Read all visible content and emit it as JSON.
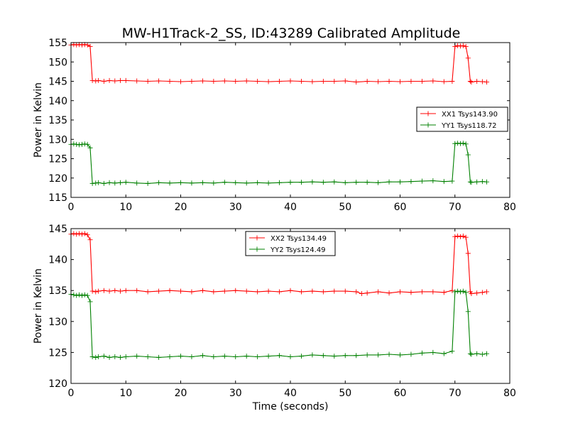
{
  "title": "MW-H1Track-2_SS, ID:43289 Calibrated Amplitude",
  "chart_data": [
    {
      "type": "line",
      "ylabel": "Power in Kelvin",
      "xlabel": "",
      "xlim": [
        0,
        80
      ],
      "ylim": [
        115,
        155
      ],
      "xticks": [
        "0",
        "10",
        "20",
        "30",
        "40",
        "50",
        "60",
        "70",
        "80"
      ],
      "yticks": [
        "115",
        "120",
        "125",
        "130",
        "135",
        "140",
        "145",
        "150",
        "155"
      ],
      "legend_position": "center-right",
      "series": [
        {
          "name": "XX1 Tsys143.90",
          "color": "#ff0000",
          "x": [
            0,
            0.5,
            1,
            1.5,
            2,
            2.5,
            3,
            3.5,
            3.9,
            4.5,
            5,
            6,
            7,
            8,
            9,
            10,
            12,
            14,
            16,
            18,
            20,
            22,
            24,
            26,
            28,
            30,
            32,
            34,
            36,
            38,
            40,
            42,
            44,
            46,
            48,
            50,
            52,
            54,
            56,
            58,
            60,
            62,
            64,
            66,
            68,
            69.5,
            70,
            70.5,
            71,
            71.5,
            72,
            72.4,
            72.8,
            73,
            74,
            75,
            75.8
          ],
          "y": [
            154.4,
            154.5,
            154.4,
            154.5,
            154.4,
            154.5,
            154.4,
            154.0,
            145.2,
            145.1,
            145.2,
            145.0,
            145.2,
            145.1,
            145.2,
            145.2,
            145.1,
            145.0,
            145.1,
            145.0,
            144.9,
            145.0,
            145.1,
            145.0,
            145.1,
            145.0,
            145.1,
            145.0,
            144.9,
            145.0,
            145.1,
            145.0,
            144.9,
            145.0,
            145.0,
            145.1,
            144.8,
            145.0,
            144.9,
            145.0,
            144.9,
            145.0,
            145.0,
            145.1,
            144.9,
            145.0,
            154.0,
            154.2,
            154.1,
            154.2,
            154.0,
            151.0,
            145.0,
            144.8,
            145.0,
            144.9,
            144.8
          ]
        },
        {
          "name": "YY1 Tsys118.72",
          "color": "#008000",
          "x": [
            0,
            0.5,
            1,
            1.5,
            2,
            2.5,
            3,
            3.5,
            3.9,
            4.5,
            5,
            6,
            7,
            8,
            9,
            10,
            12,
            14,
            16,
            18,
            20,
            22,
            24,
            26,
            28,
            30,
            32,
            34,
            36,
            38,
            40,
            42,
            44,
            46,
            48,
            50,
            52,
            54,
            56,
            58,
            60,
            62,
            64,
            66,
            68,
            69.5,
            70,
            70.5,
            71,
            71.5,
            72,
            72.4,
            72.8,
            73,
            74,
            75,
            75.8
          ],
          "y": [
            128.7,
            128.8,
            128.7,
            128.6,
            128.7,
            128.8,
            128.7,
            127.8,
            118.6,
            118.7,
            118.8,
            118.6,
            118.8,
            118.7,
            118.8,
            118.9,
            118.7,
            118.6,
            118.8,
            118.7,
            118.8,
            118.7,
            118.8,
            118.7,
            118.9,
            118.8,
            118.7,
            118.8,
            118.7,
            118.8,
            118.9,
            118.9,
            119.0,
            118.9,
            119.0,
            118.8,
            118.9,
            118.9,
            118.8,
            119.0,
            119.0,
            119.1,
            119.2,
            119.3,
            119.1,
            119.2,
            128.9,
            129.0,
            128.9,
            129.0,
            128.8,
            126.0,
            119.0,
            118.9,
            119.0,
            119.1,
            119.0
          ]
        }
      ]
    },
    {
      "type": "line",
      "ylabel": "Power in Kelvin",
      "xlabel": "Time (seconds)",
      "xlim": [
        0,
        80
      ],
      "ylim": [
        120,
        145
      ],
      "xticks": [
        "0",
        "10",
        "20",
        "30",
        "40",
        "50",
        "60",
        "70",
        "80"
      ],
      "yticks": [
        "120",
        "125",
        "130",
        "135",
        "140",
        "145"
      ],
      "legend_position": "top-center",
      "series": [
        {
          "name": "XX2 Tsys134.49",
          "color": "#ff0000",
          "x": [
            0,
            0.5,
            1,
            1.5,
            2,
            2.5,
            3,
            3.5,
            3.9,
            4.5,
            5,
            6,
            7,
            8,
            9,
            10,
            12,
            14,
            16,
            18,
            20,
            22,
            24,
            26,
            28,
            30,
            32,
            34,
            36,
            38,
            40,
            42,
            44,
            46,
            48,
            50,
            52,
            53,
            54,
            56,
            58,
            60,
            62,
            64,
            66,
            68,
            69.5,
            70,
            70.5,
            71,
            71.5,
            72,
            72.4,
            72.8,
            73,
            74,
            75,
            75.8
          ],
          "y": [
            144.1,
            144.2,
            144.1,
            144.2,
            144.1,
            144.2,
            144.0,
            143.2,
            134.9,
            134.8,
            134.9,
            135.0,
            134.9,
            135.0,
            134.9,
            135.0,
            135.0,
            134.8,
            134.9,
            135.0,
            134.9,
            134.8,
            135.0,
            134.8,
            134.9,
            135.0,
            134.9,
            134.8,
            134.9,
            134.8,
            135.0,
            134.8,
            134.9,
            134.8,
            134.9,
            134.9,
            134.8,
            134.5,
            134.6,
            134.8,
            134.6,
            134.8,
            134.7,
            134.8,
            134.8,
            134.7,
            135.0,
            143.7,
            143.8,
            143.7,
            143.8,
            143.6,
            141.0,
            134.8,
            134.5,
            134.6,
            134.7,
            134.8
          ]
        },
        {
          "name": "YY2 Tsys124.49",
          "color": "#008000",
          "x": [
            0,
            0.5,
            1,
            1.5,
            2,
            2.5,
            3,
            3.5,
            3.9,
            4.5,
            5,
            6,
            7,
            8,
            9,
            10,
            12,
            14,
            16,
            18,
            20,
            22,
            24,
            26,
            28,
            30,
            32,
            34,
            36,
            38,
            40,
            42,
            44,
            46,
            48,
            50,
            52,
            54,
            56,
            58,
            60,
            62,
            64,
            66,
            68,
            69.5,
            70,
            70.5,
            71,
            71.5,
            72,
            72.4,
            72.8,
            73,
            74,
            75,
            75.8
          ],
          "y": [
            134.4,
            134.3,
            134.2,
            134.3,
            134.2,
            134.3,
            134.2,
            133.2,
            124.3,
            124.2,
            124.3,
            124.4,
            124.2,
            124.3,
            124.2,
            124.3,
            124.4,
            124.3,
            124.2,
            124.3,
            124.4,
            124.3,
            124.5,
            124.3,
            124.4,
            124.3,
            124.4,
            124.3,
            124.4,
            124.5,
            124.3,
            124.4,
            124.6,
            124.5,
            124.4,
            124.5,
            124.5,
            124.6,
            124.6,
            124.7,
            124.6,
            124.7,
            124.9,
            125.0,
            124.8,
            125.2,
            134.8,
            134.9,
            134.8,
            134.9,
            134.7,
            131.6,
            124.8,
            124.7,
            124.8,
            124.7,
            124.8
          ]
        }
      ]
    }
  ]
}
